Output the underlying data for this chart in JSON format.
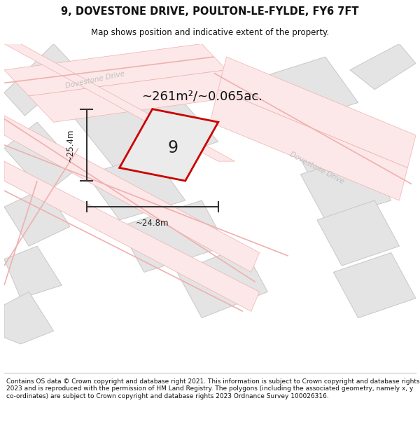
{
  "title": "9, DOVESTONE DRIVE, POULTON-LE-FYLDE, FY6 7FT",
  "subtitle": "Map shows position and indicative extent of the property.",
  "area_label": "~261m²/~0.065ac.",
  "number_label": "9",
  "dim_width": "~24.8m",
  "dim_height": "~25.4m",
  "footer": "Contains OS data © Crown copyright and database right 2021. This information is subject to Crown copyright and database rights 2023 and is reproduced with the permission of HM Land Registry. The polygons (including the associated geometry, namely x, y co-ordinates) are subject to Crown copyright and database rights 2023 Ordnance Survey 100026316.",
  "bg_color": "#f2f2f2",
  "parcel_fill": "#e4e4e4",
  "parcel_edge": "#c8c8c8",
  "road_fill": "#fce8e8",
  "road_edge": "#f0b0b0",
  "road_line": "#f0b0b0",
  "red_plot_color": "#cc0000",
  "road_text_color": "#c0c0c0",
  "figsize": [
    6.0,
    6.25
  ],
  "dpi": 100,
  "road_label_top": "Dovestone Drive",
  "road_label_right": "Dovestone Drive",
  "map_xlim": [
    0,
    100
  ],
  "map_ylim": [
    0,
    100
  ]
}
